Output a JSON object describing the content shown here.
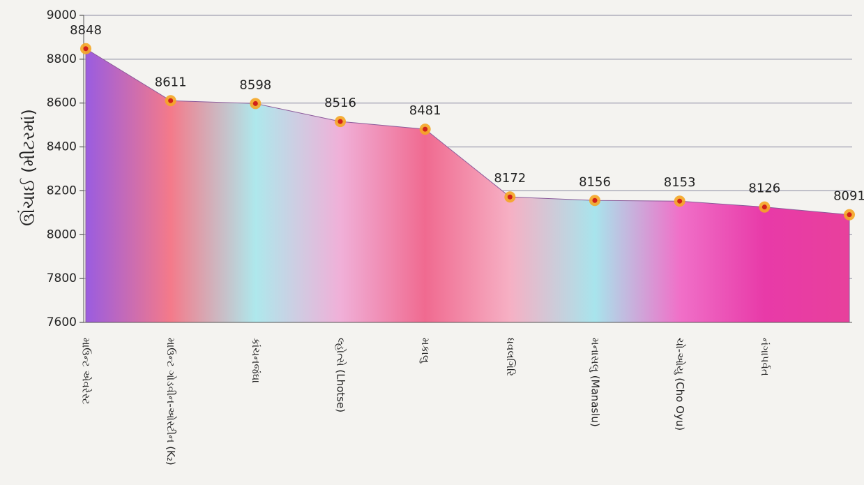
{
  "chart_data": {
    "type": "area",
    "y_label": "ઊંચાઈ (મીટરમાં)",
    "categories": [
      "માઉન્ટ એવરેસ્ટ",
      "માઉન્ટ ગોડવીન-ઓસ્ટીન (K₂)",
      "કાંચનજંઘા",
      "લ્હોત્સે (Lhotse)",
      "મકાલુ",
      "ધવલગિરિ",
      "મનાસલુ (Manaslu)",
      "ચો-ઓયુ (Cho Oyu)",
      "નંગાપર્વત",
      null
    ],
    "values": [
      8848,
      8611,
      8598,
      8516,
      8481,
      8172,
      8156,
      8153,
      8126,
      8091
    ],
    "colors": [
      "#9a5ce0",
      "#f47a8a",
      "#aee8ec",
      "#f0b0d8",
      "#f06a90",
      "#f6b0c4",
      "#a8e4ec",
      "#f070c8",
      "#e83aa8",
      "#e8409c"
    ],
    "marker_color": "#f5a623",
    "ylim": [
      7600,
      9000
    ],
    "yticks": [
      7600,
      7800,
      8000,
      8200,
      8400,
      8600,
      8800,
      9000
    ],
    "grid": true
  }
}
